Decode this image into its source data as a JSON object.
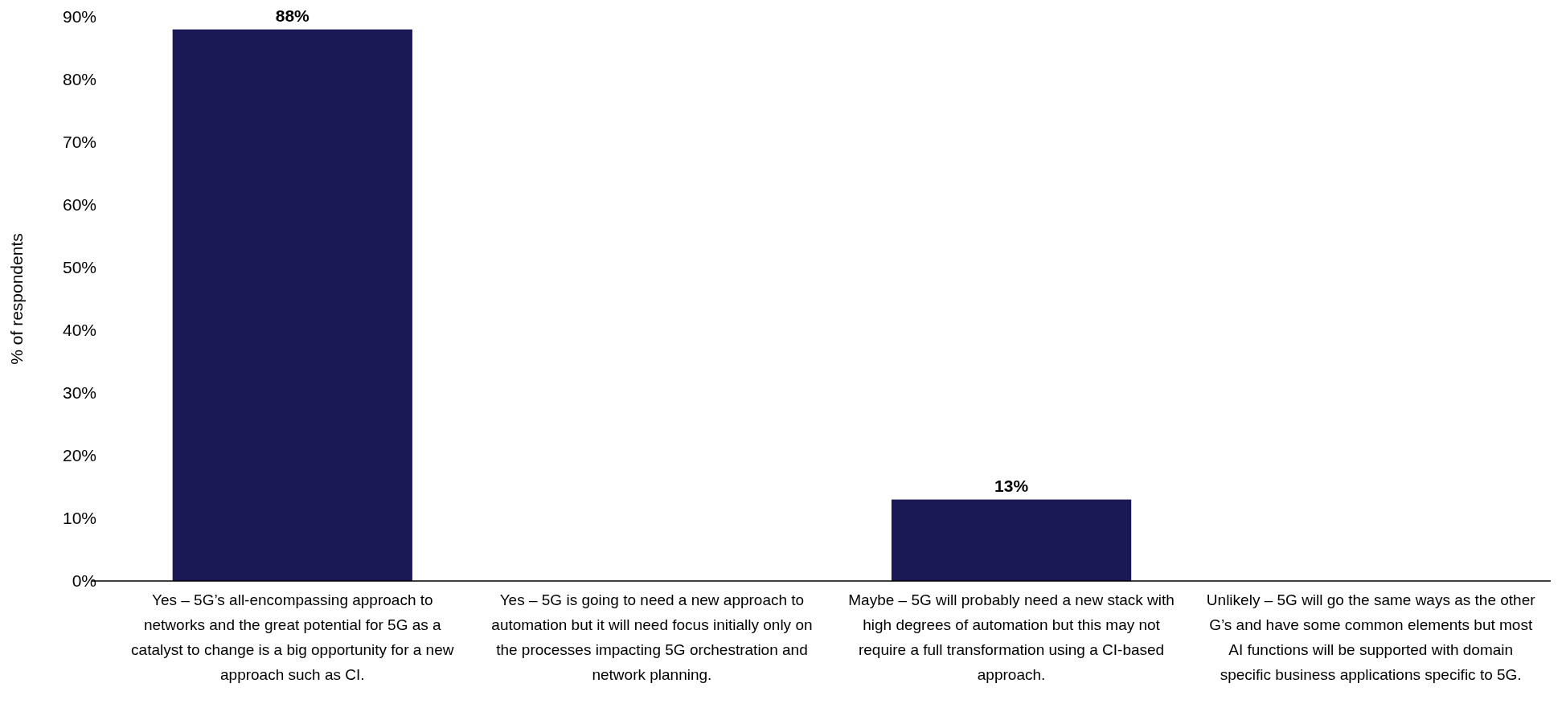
{
  "chart_data": {
    "type": "bar",
    "ylabel": "% of respondents",
    "categories": [
      "Yes – 5G’s all-encompassing approach to networks and the great potential for 5G as a catalyst to change is a big opportunity for a new approach such as CI.",
      "Yes – 5G is going to need a new approach to automation but it will need focus initially only on the processes impacting 5G orchestration and network planning.",
      "Maybe – 5G will probably need a new stack with high degrees of automation but this may not require a full transformation using a CI-based approach.",
      "Unlikely – 5G will go the same ways as the other G’s and have some common elements but most AI functions will be supported with domain specific business applications specific to 5G."
    ],
    "values": [
      88,
      0,
      13,
      0
    ],
    "value_labels": [
      "88%",
      null,
      "13%",
      null
    ],
    "color": "#1b1856",
    "ylim": [
      0,
      90
    ],
    "yticks": [
      {
        "value": 0,
        "label": "0%"
      },
      {
        "value": 10,
        "label": "10%"
      },
      {
        "value": 20,
        "label": "20%"
      },
      {
        "value": 30,
        "label": "30%"
      },
      {
        "value": 40,
        "label": "40%"
      },
      {
        "value": 50,
        "label": "50%"
      },
      {
        "value": 60,
        "label": "60%"
      },
      {
        "value": 70,
        "label": "70%"
      },
      {
        "value": 80,
        "label": "80%"
      },
      {
        "value": 90,
        "label": "90%"
      }
    ],
    "grid": false
  }
}
